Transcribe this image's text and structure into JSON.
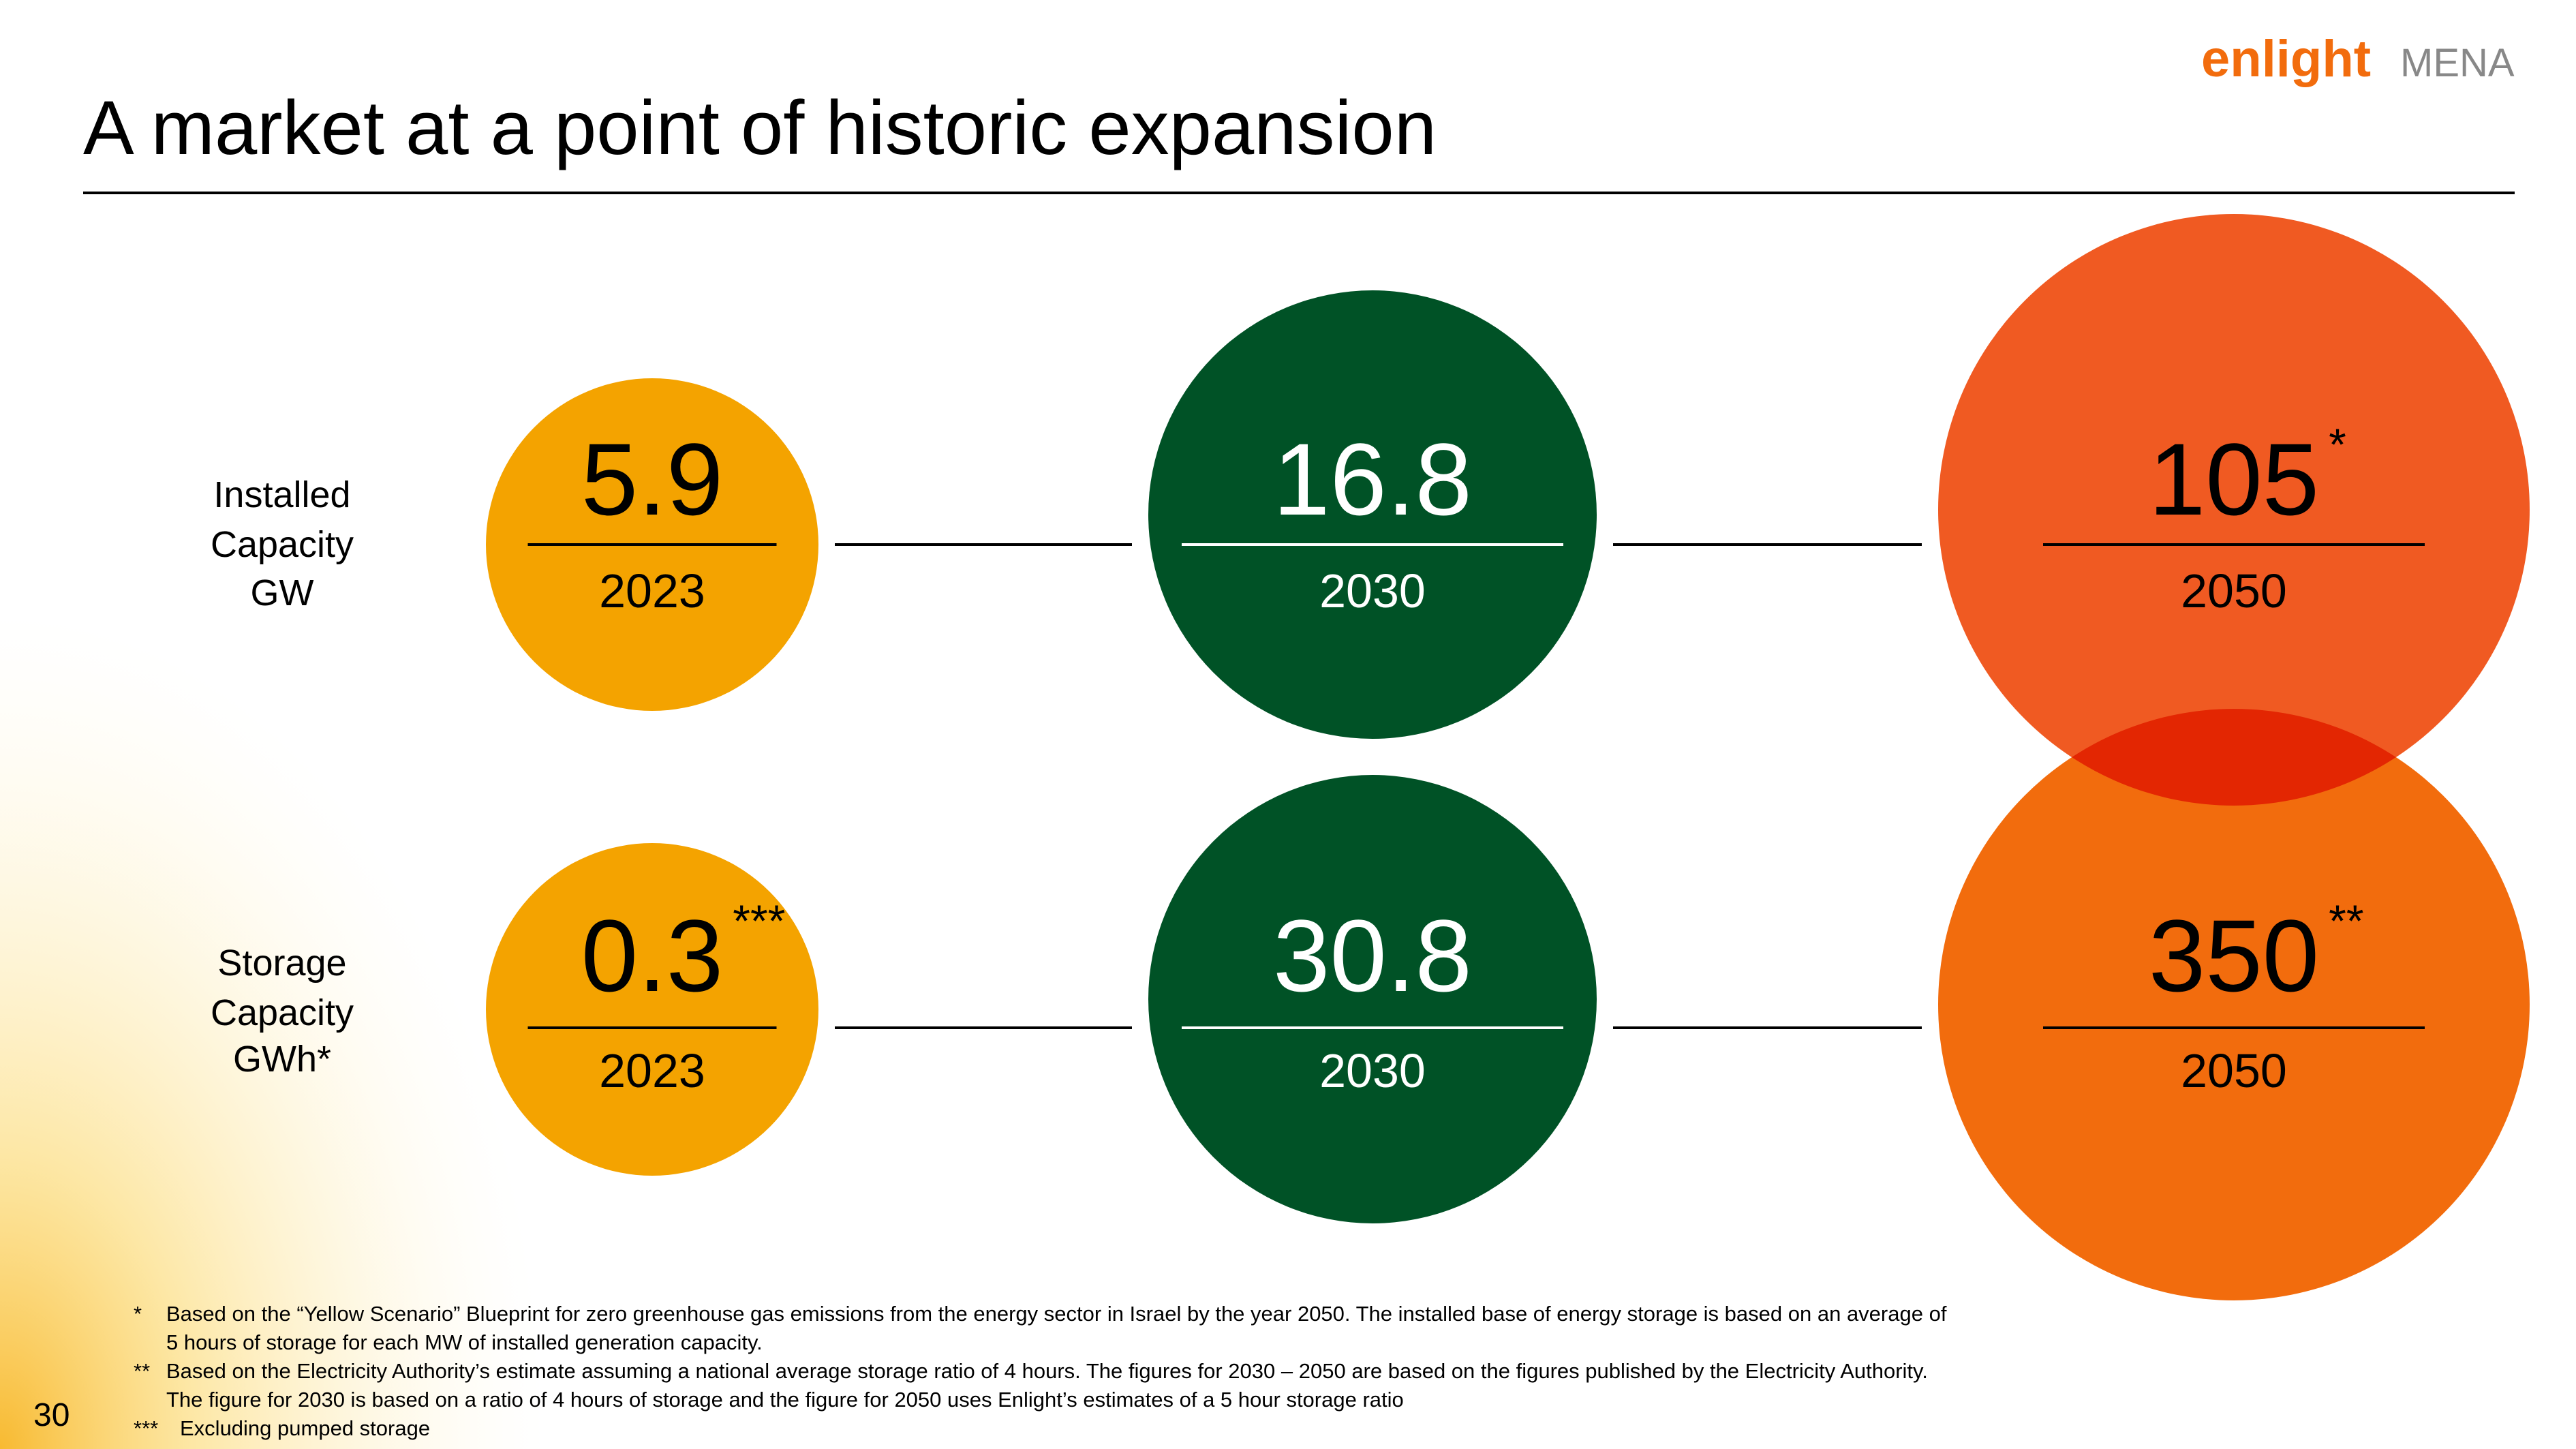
{
  "header": {
    "title": "A market at a point of historic expansion",
    "brand": "enlight",
    "region": "MENA"
  },
  "rows": [
    {
      "label": [
        "Installed",
        "Capacity",
        "GW"
      ],
      "cells": [
        {
          "value": 5.9,
          "year": "2023"
        },
        {
          "value": 16.8,
          "year": "2030"
        },
        {
          "value": 105,
          "note": "*",
          "year": "2050"
        }
      ]
    },
    {
      "label": [
        "Storage",
        "Capacity",
        "GWh*"
      ],
      "cells": [
        {
          "value": 0.3,
          "note": "***",
          "year": "2023"
        },
        {
          "value": 30.8,
          "year": "2030"
        },
        {
          "value": 350,
          "note": "**",
          "year": "2050"
        }
      ]
    }
  ],
  "footnotes": [
    {
      "marker": "*",
      "lines": [
        "Based on the “Yellow Scenario” Blueprint for zero greenhouse gas emissions from the energy sector in Israel by the year 2050. The installed base of energy storage is based on an average of",
        "5 hours of storage for each MW of installed generation capacity."
      ]
    },
    {
      "marker": "**",
      "lines": [
        "Based on the Electricity Authority’s estimate assuming a national average storage ratio of 4 hours. The figures for 2030 – 2050 are based on the figures published by the Electricity Authority.",
        "The figure for 2030 is based on a ratio of 4 hours of storage and the figure for 2050 uses Enlight’s estimates of a 5 hour storage ratio"
      ]
    },
    {
      "marker": "***",
      "lines": [
        "Excluding pumped storage"
      ]
    }
  ],
  "page_number": 30
}
